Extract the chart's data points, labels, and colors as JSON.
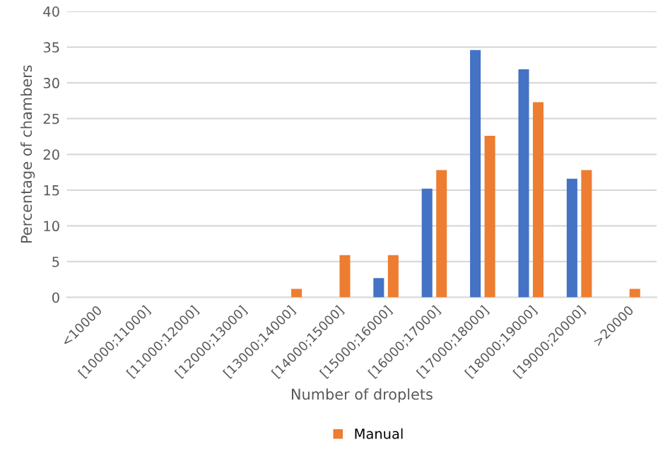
{
  "chart_data": {
    "type": "bar",
    "xlabel": "Number of droplets",
    "ylabel": "Percentage of chambers",
    "categories": [
      "<10000",
      "[10000;11000]",
      "[11000;12000]",
      "[12000;13000]",
      "[13000;14000]",
      "[14000;15000]",
      "[15000;16000]",
      "[16000;17000]",
      "[17000;18000]",
      "[18000;19000]",
      "[19000;20000]",
      ">20000"
    ],
    "series": [
      {
        "color": "#4472c4",
        "values": [
          0,
          0,
          0,
          0,
          0,
          0,
          2.7,
          15.2,
          34.6,
          31.9,
          16.6,
          0
        ]
      },
      {
        "name": "Manual",
        "color": "#ed7d31",
        "values": [
          0,
          0,
          0,
          0,
          1.2,
          5.9,
          5.9,
          17.8,
          22.6,
          27.3,
          17.8,
          1.2
        ]
      }
    ],
    "ylim": [
      0,
      40
    ],
    "yticks": [
      0,
      5,
      10,
      15,
      20,
      25,
      30,
      35,
      40
    ],
    "grid": "y",
    "legend": "bottom"
  }
}
